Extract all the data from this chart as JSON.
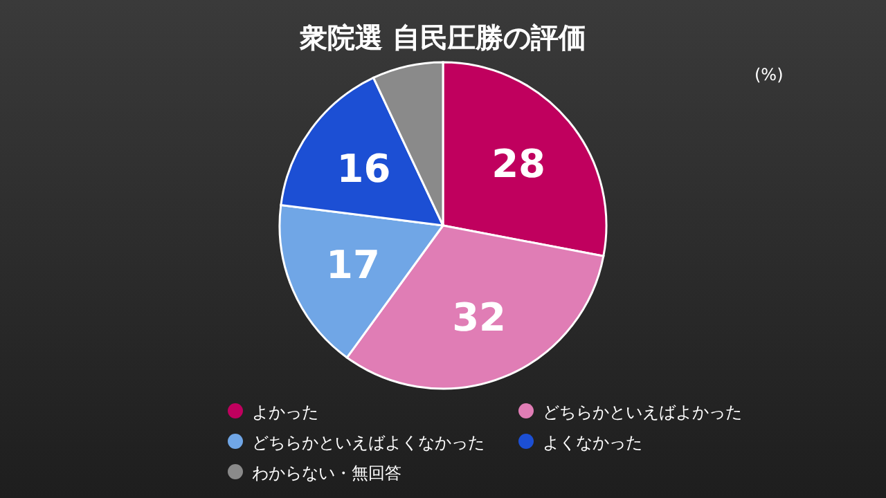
{
  "chart_data": {
    "type": "pie",
    "title": "衆院選 自民圧勝の評価",
    "categories": [
      "よかった",
      "どちらかといえばよかった",
      "どちらかといえばよくなかった",
      "よくなかった",
      "わからない・無回答"
    ],
    "values": [
      28,
      32,
      17,
      16,
      7
    ],
    "colors": [
      "#c0005e",
      "#e07db5",
      "#70a6e6",
      "#1c4fd4",
      "#8a8a8a"
    ],
    "value_labels": [
      "28",
      "32",
      "17",
      "16",
      null
    ],
    "annotations": [
      "(%)"
    ],
    "legend": "bottom"
  }
}
